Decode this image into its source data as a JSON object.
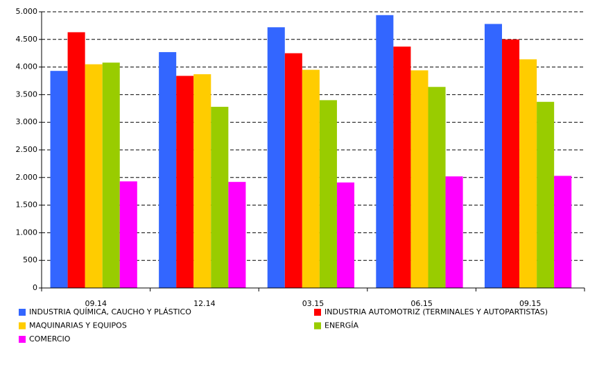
{
  "chart_data": {
    "type": "bar",
    "categories": [
      "09.14",
      "12.14",
      "03.15",
      "06.15",
      "09.15"
    ],
    "series": [
      {
        "name": "INDUSTRIA QUÍMICA, CAUCHO Y PLÁSTICO",
        "color": "#3366ff",
        "values": [
          3930,
          4270,
          4720,
          4940,
          4780
        ]
      },
      {
        "name": "INDUSTRIA AUTOMOTRIZ (TERMINALES Y AUTOPARTISTAS)",
        "color": "#ff0000",
        "values": [
          4630,
          3840,
          4250,
          4370,
          4500
        ]
      },
      {
        "name": "MAQUINARIAS Y EQUIPOS",
        "color": "#ffcc00",
        "values": [
          4050,
          3870,
          3950,
          3940,
          4140
        ]
      },
      {
        "name": "ENERGÍA",
        "color": "#99cc00",
        "values": [
          4080,
          3280,
          3400,
          3640,
          3370
        ]
      },
      {
        "name": "COMERCIO",
        "color": "#ff00ff",
        "values": [
          1930,
          1920,
          1910,
          2020,
          2030
        ]
      }
    ],
    "ylim": [
      0,
      5000
    ],
    "yticks": [
      0,
      500,
      {
        "value": 1000,
        "label": "1.000"
      },
      {
        "value": 1500,
        "label": "1.500"
      },
      {
        "value": 2000,
        "label": "2.000"
      },
      {
        "value": 2500,
        "label": "2.500"
      },
      {
        "value": 3000,
        "label": "3.000"
      },
      {
        "value": 3500,
        "label": "3.500"
      },
      {
        "value": 4000,
        "label": "4.000"
      },
      {
        "value": 4500,
        "label": "4.500"
      },
      {
        "value": 5000,
        "label": "5.000"
      }
    ],
    "grid": true
  }
}
